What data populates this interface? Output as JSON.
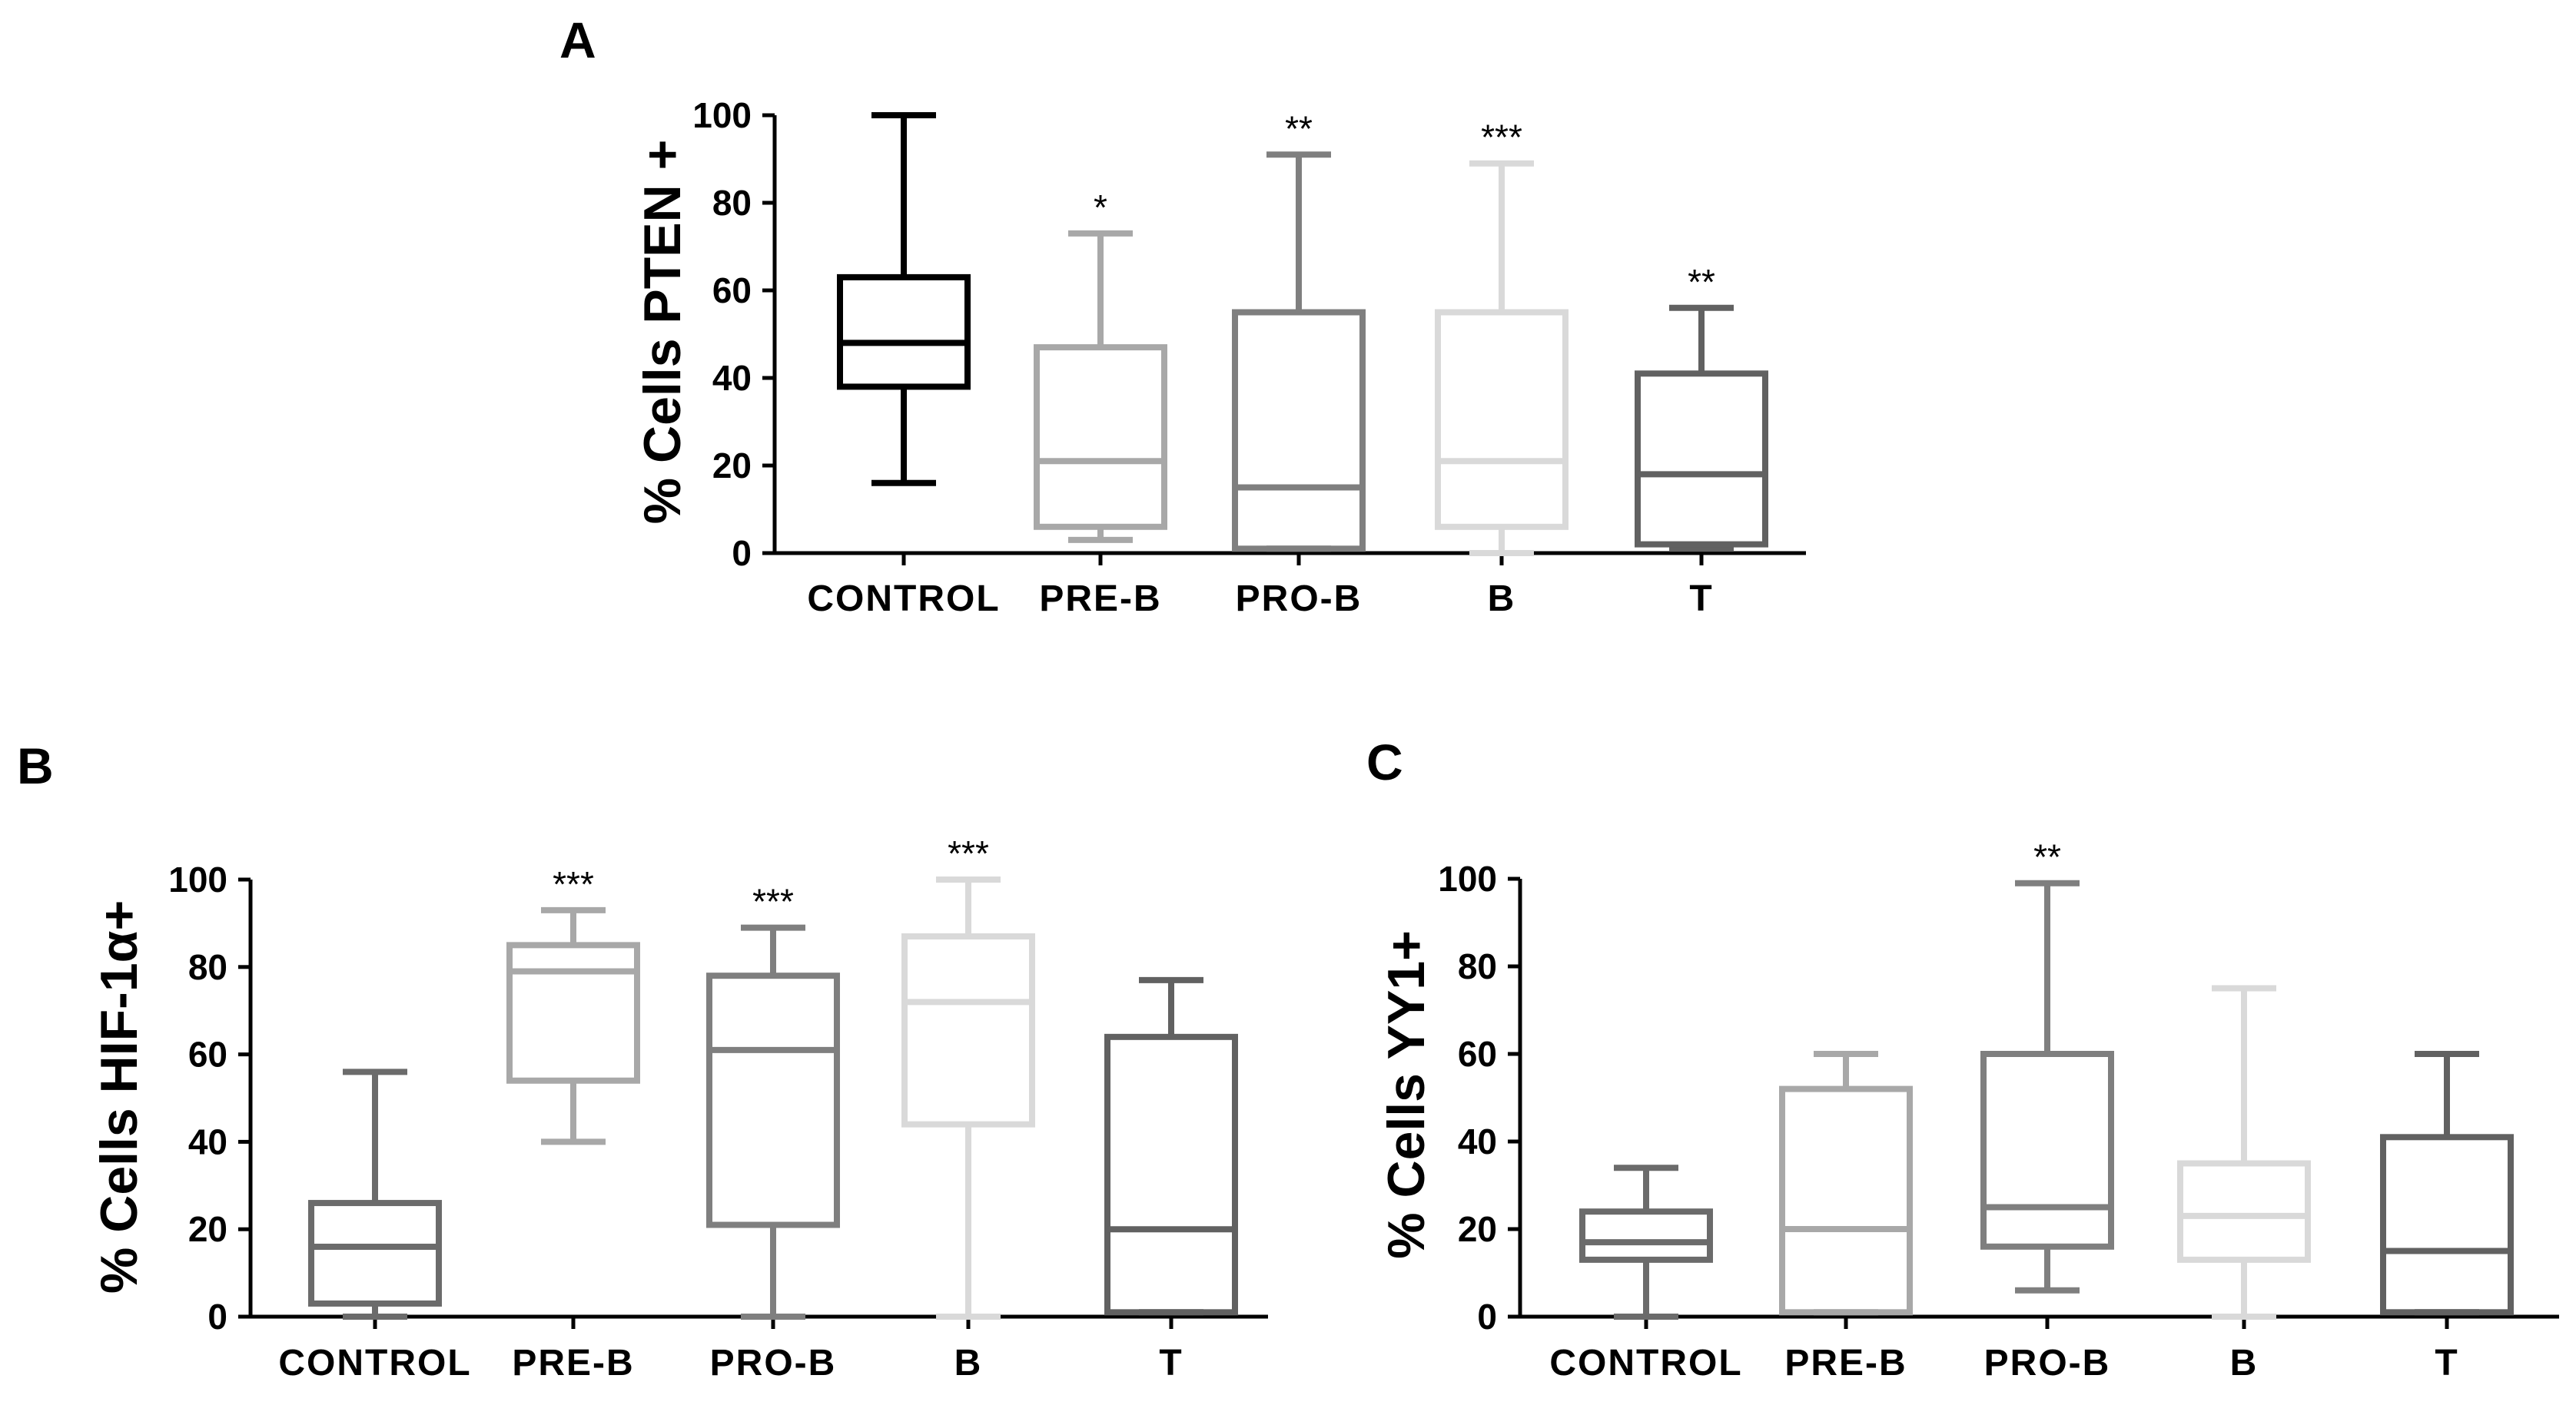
{
  "chart_data": [
    {
      "panel": "A",
      "type": "boxplot",
      "ylabel": "% Cells PTEN +",
      "ylim": [
        0,
        100
      ],
      "yticks": [
        "0",
        "20",
        "40",
        "60",
        "80",
        "100"
      ],
      "categories": [
        "CONTROL",
        "PRE-B",
        "PRO-B",
        "B",
        "T"
      ],
      "boxes": [
        {
          "name": "CONTROL",
          "min": 16,
          "q1": 38,
          "median": 48,
          "q3": 63,
          "max": 100,
          "color": "#000000",
          "significance": ""
        },
        {
          "name": "PRE-B",
          "min": 3,
          "q1": 6,
          "median": 21,
          "q3": 47,
          "max": 73,
          "color": "#a8a8a8",
          "significance": "*"
        },
        {
          "name": "PRO-B",
          "min": 1,
          "q1": 1,
          "median": 15,
          "q3": 55,
          "max": 91,
          "color": "#7f7f7f",
          "significance": "**"
        },
        {
          "name": "B",
          "min": 0,
          "q1": 6,
          "median": 21,
          "q3": 55,
          "max": 89,
          "color": "#d9d9d9",
          "significance": "***"
        },
        {
          "name": "T",
          "min": 1,
          "q1": 2,
          "median": 18,
          "q3": 41,
          "max": 56,
          "color": "#616161",
          "significance": "**"
        }
      ]
    },
    {
      "panel": "B",
      "type": "boxplot",
      "ylabel": "% Cells HIF-1α+",
      "ylim": [
        0,
        100
      ],
      "yticks": [
        "0",
        "20",
        "40",
        "60",
        "80",
        "100"
      ],
      "categories": [
        "CONTROL",
        "PRE-B",
        "PRO-B",
        "B",
        "T"
      ],
      "boxes": [
        {
          "name": "CONTROL",
          "min": 0,
          "q1": 3,
          "median": 16,
          "q3": 26,
          "max": 56,
          "color": "#6b6b6b",
          "significance": ""
        },
        {
          "name": "PRE-B",
          "min": 40,
          "q1": 54,
          "median": 79,
          "q3": 85,
          "max": 93,
          "color": "#a8a8a8",
          "significance": "***"
        },
        {
          "name": "PRO-B",
          "min": 0,
          "q1": 21,
          "median": 61,
          "q3": 78,
          "max": 89,
          "color": "#7f7f7f",
          "significance": "***"
        },
        {
          "name": "B",
          "min": 0,
          "q1": 44,
          "median": 72,
          "q3": 87,
          "max": 100,
          "color": "#d9d9d9",
          "significance": "***"
        },
        {
          "name": "T",
          "min": 1,
          "q1": 1,
          "median": 20,
          "q3": 64,
          "max": 77,
          "color": "#616161",
          "significance": ""
        }
      ]
    },
    {
      "panel": "C",
      "type": "boxplot",
      "ylabel": "% Cells YY1+",
      "ylim": [
        0,
        100
      ],
      "yticks": [
        "0",
        "20",
        "40",
        "60",
        "80",
        "100"
      ],
      "categories": [
        "CONTROL",
        "PRE-B",
        "PRO-B",
        "B",
        "T"
      ],
      "boxes": [
        {
          "name": "CONTROL",
          "min": 0,
          "q1": 13,
          "median": 17,
          "q3": 24,
          "max": 34,
          "color": "#6b6b6b",
          "significance": ""
        },
        {
          "name": "PRE-B",
          "min": 1,
          "q1": 1,
          "median": 20,
          "q3": 52,
          "max": 60,
          "color": "#a8a8a8",
          "significance": ""
        },
        {
          "name": "PRO-B",
          "min": 6,
          "q1": 16,
          "median": 25,
          "q3": 60,
          "max": 99,
          "color": "#7f7f7f",
          "significance": "**"
        },
        {
          "name": "B",
          "min": 0,
          "q1": 13,
          "median": 23,
          "q3": 35,
          "max": 75,
          "color": "#d9d9d9",
          "significance": ""
        },
        {
          "name": "T",
          "min": 1,
          "q1": 1,
          "median": 15,
          "q3": 41,
          "max": 60,
          "color": "#616161",
          "significance": ""
        }
      ]
    }
  ]
}
